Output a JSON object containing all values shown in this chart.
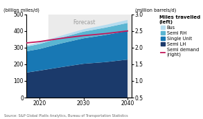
{
  "years": [
    2017,
    2020,
    2025,
    2030,
    2035,
    2040
  ],
  "semi_lh": [
    150,
    162,
    183,
    203,
    213,
    228
  ],
  "single_unit": [
    128,
    130,
    143,
    153,
    163,
    172
  ],
  "semi_rh": [
    28,
    30,
    34,
    40,
    44,
    48
  ],
  "bus": [
    8,
    10,
    12,
    14,
    16,
    18
  ],
  "semi_demand": [
    2.14,
    2.18,
    2.28,
    2.36,
    2.42,
    2.5
  ],
  "colors": {
    "semi_lh": "#1b3a6b",
    "single_unit": "#1878b4",
    "semi_rh": "#5ab5d2",
    "bus": "#b5dcef",
    "semi_demand": "#c2185b"
  },
  "forecast_start": 2022,
  "xlim": [
    2017,
    2041
  ],
  "ylim_left": [
    0,
    500
  ],
  "ylim_right": [
    0.5,
    3.0
  ],
  "yticks_left": [
    0,
    100,
    200,
    300,
    400,
    500
  ],
  "yticks_right": [
    0.5,
    1.0,
    1.5,
    2.0,
    2.5,
    3.0
  ],
  "xticks": [
    2020,
    2030,
    2040
  ],
  "ylabel_left": "(billion miles/d)",
  "ylabel_right": "(million barrels/d)",
  "forecast_label": "Forecast",
  "source_text": "Source: S&P Global Platts Analytics, Bureau of Transportation Statistics",
  "legend_title": "Miles travelled\n(left)",
  "legend_line_label": "Semi demand\n(right)",
  "forecast_bg": "#ebebeb",
  "plot_bg": "#ffffff"
}
